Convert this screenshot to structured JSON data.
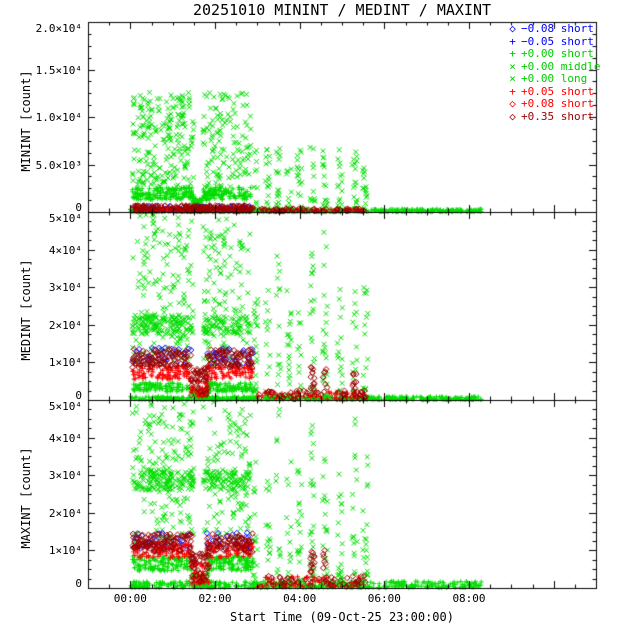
{
  "title": "20251010 MININT / MEDINT / MAXINT",
  "xlabel": "Start Time (09-Oct-25 23:00:00)",
  "legend": [
    {
      "marker": "◇",
      "color": "#0000ff",
      "label": "−0.08 short"
    },
    {
      "marker": "+",
      "color": "#0000ff",
      "label": "−0.05 short"
    },
    {
      "marker": "+",
      "color": "#00cc00",
      "label": "+0.00 short"
    },
    {
      "marker": "×",
      "color": "#00cc00",
      "label": "+0.00 middle"
    },
    {
      "marker": "×",
      "color": "#00cc00",
      "label": "+0.00 long"
    },
    {
      "marker": "+",
      "color": "#ff0000",
      "label": "+0.05 short"
    },
    {
      "marker": "◇",
      "color": "#ff0000",
      "label": "+0.08 short"
    },
    {
      "marker": "◇",
      "color": "#990000",
      "label": "+0.35 short"
    }
  ],
  "chart_data": {
    "type": "scatter",
    "title": "20251010 MININT / MEDINT / MAXINT",
    "xlabel": "Start Time (09-Oct-25 23:00:00)",
    "x_hours_range": [
      -1,
      11
    ],
    "x_ticks": [
      {
        "t": 0,
        "label": "00:00"
      },
      {
        "t": 2,
        "label": "02:00"
      },
      {
        "t": 4,
        "label": "04:00"
      },
      {
        "t": 6,
        "label": "06:00"
      },
      {
        "t": 8,
        "label": "08:00"
      }
    ],
    "panels": [
      {
        "name": "MININT",
        "ylabel": "MININT [count]",
        "ylim": [
          0,
          20000
        ],
        "yticks": [
          {
            "v": 0,
            "label": "0"
          },
          {
            "v": 5000,
            "label": "5.0×10³"
          },
          {
            "v": 10000,
            "label": "1.0×10⁴"
          },
          {
            "v": 15000,
            "label": "1.5×10⁴"
          },
          {
            "v": 20000,
            "label": "2.0×10⁴"
          }
        ],
        "clusters": [
          {
            "m": "x",
            "color": "#00dd00",
            "t0": 0.05,
            "t1": 2.85,
            "y0": 2600,
            "y1": 12600,
            "n": 380,
            "seed": 11,
            "gap": [
              1.5,
              1.72
            ]
          },
          {
            "m": "+",
            "color": "#00dd00",
            "t0": 0.05,
            "t1": 2.85,
            "y0": 1300,
            "y1": 2600,
            "n": 280,
            "seed": 12,
            "gap": [
              1.5,
              1.72
            ]
          },
          {
            "m": "+",
            "color": "#00dd00",
            "t0": 1.45,
            "t1": 1.8,
            "y0": 300,
            "y1": 1500,
            "n": 40,
            "seed": 13
          },
          {
            "m": "+",
            "color": "#00dd00",
            "t0": 0.0,
            "t1": 8.3,
            "y0": 30,
            "y1": 320,
            "n": 520,
            "seed": 14,
            "pow": 1.6
          },
          {
            "m": "x",
            "color": "#00dd00",
            "cols": [
              2.95,
              3.25,
              3.5,
              3.75,
              4.0,
              4.3,
              4.6,
              4.95,
              5.3,
              5.55
            ],
            "colWidth": 0.12,
            "y0": 300,
            "y1": 6800,
            "n": 150,
            "seed": 15,
            "pow": 1.5
          },
          {
            "m": "d",
            "color": "#0000ff",
            "t0": 0.05,
            "t1": 2.9,
            "y0": 100,
            "y1": 650,
            "n": 70,
            "seed": 16
          },
          {
            "m": "+",
            "color": "#ff0000",
            "t0": 0.05,
            "t1": 2.9,
            "y0": 60,
            "y1": 520,
            "n": 150,
            "seed": 17
          },
          {
            "m": "+",
            "color": "#ff0000",
            "t0": 3.0,
            "t1": 5.6,
            "y0": 40,
            "y1": 300,
            "n": 45,
            "seed": 18
          },
          {
            "m": "d",
            "color": "#990000",
            "t0": 0.05,
            "t1": 2.9,
            "y0": 90,
            "y1": 700,
            "n": 170,
            "seed": 19
          },
          {
            "m": "d",
            "color": "#990000",
            "t0": 3.0,
            "t1": 5.6,
            "y0": 50,
            "y1": 350,
            "n": 55,
            "seed": 20
          }
        ]
      },
      {
        "name": "MEDINT",
        "ylabel": "MEDINT [count]",
        "ylim": [
          0,
          50000
        ],
        "yticks": [
          {
            "v": 0,
            "label": "0"
          },
          {
            "v": 10000,
            "label": "1×10⁴"
          },
          {
            "v": 20000,
            "label": "2×10⁴"
          },
          {
            "v": 30000,
            "label": "3×10⁴"
          },
          {
            "v": 40000,
            "label": "4×10⁴"
          },
          {
            "v": 50000,
            "label": "5×10⁴"
          }
        ],
        "clusters": [
          {
            "m": "x",
            "color": "#00dd00",
            "t0": 0.05,
            "t1": 2.85,
            "y0": 9000,
            "y1": 49500,
            "n": 320,
            "seed": 21,
            "gap": [
              1.5,
              1.72
            ]
          },
          {
            "m": "x",
            "color": "#00dd00",
            "t0": 0.05,
            "t1": 2.85,
            "y0": 17500,
            "y1": 22500,
            "n": 220,
            "seed": 22,
            "gap": [
              1.5,
              1.72
            ]
          },
          {
            "m": "+",
            "color": "#00dd00",
            "t0": 0.05,
            "t1": 2.9,
            "y0": 2200,
            "y1": 4600,
            "n": 210,
            "seed": 23,
            "gap": [
              1.45,
              1.8
            ]
          },
          {
            "m": "+",
            "color": "#00dd00",
            "t0": 1.42,
            "t1": 1.85,
            "y0": 400,
            "y1": 2500,
            "n": 45,
            "seed": 24
          },
          {
            "m": "+",
            "color": "#00dd00",
            "t0": 0.0,
            "t1": 8.3,
            "y0": 80,
            "y1": 900,
            "n": 480,
            "seed": 25,
            "pow": 1.6
          },
          {
            "m": "x",
            "color": "#00dd00",
            "cols": [
              2.95,
              3.25,
              3.5,
              3.75,
              4.0,
              4.3,
              4.6,
              4.95,
              5.3,
              5.55
            ],
            "colWidth": 0.12,
            "y0": 700,
            "y1": 30000,
            "n": 170,
            "seed": 26,
            "pow": 1.7
          },
          {
            "m": "x",
            "color": "#00dd00",
            "cols": [
              3.5,
              4.3,
              4.6
            ],
            "colWidth": 0.08,
            "y0": 30000,
            "y1": 47500,
            "n": 14,
            "seed": 27
          },
          {
            "m": "d",
            "color": "#0000ff",
            "t0": 0.05,
            "t1": 2.9,
            "y0": 9000,
            "y1": 14000,
            "n": 75,
            "seed": 28,
            "gap": [
              1.45,
              1.8
            ]
          },
          {
            "m": "+",
            "color": "#ff0000",
            "t0": 0.05,
            "t1": 2.9,
            "y0": 5500,
            "y1": 9200,
            "n": 190,
            "seed": 29,
            "gap": [
              1.45,
              1.8
            ]
          },
          {
            "m": "+",
            "color": "#ff0000",
            "t0": 1.42,
            "t1": 1.85,
            "y0": 900,
            "y1": 5500,
            "n": 40,
            "seed": 30
          },
          {
            "m": "+",
            "color": "#ff0000",
            "t0": 3.0,
            "t1": 5.6,
            "y0": 150,
            "y1": 2200,
            "n": 50,
            "seed": 31
          },
          {
            "m": "d",
            "color": "#990000",
            "t0": 0.05,
            "t1": 2.9,
            "y0": 8500,
            "y1": 13500,
            "n": 210,
            "seed": 32,
            "gap": [
              1.45,
              1.8
            ]
          },
          {
            "m": "d",
            "color": "#990000",
            "t0": 1.42,
            "t1": 1.85,
            "y0": 1200,
            "y1": 8500,
            "n": 50,
            "seed": 33
          },
          {
            "m": "d",
            "color": "#990000",
            "t0": 3.0,
            "t1": 5.6,
            "y0": 200,
            "y1": 2600,
            "n": 60,
            "seed": 34
          },
          {
            "m": "d",
            "color": "#990000",
            "cols": [
              4.3,
              4.6,
              5.3
            ],
            "colWidth": 0.1,
            "y0": 3000,
            "y1": 9000,
            "n": 26,
            "seed": 35
          }
        ]
      },
      {
        "name": "MAXINT",
        "ylabel": "MAXINT [count]",
        "ylim": [
          0,
          50000
        ],
        "yticks": [
          {
            "v": 0,
            "label": "0"
          },
          {
            "v": 10000,
            "label": "1×10⁴"
          },
          {
            "v": 20000,
            "label": "2×10⁴"
          },
          {
            "v": 30000,
            "label": "3×10⁴"
          },
          {
            "v": 40000,
            "label": "4×10⁴"
          },
          {
            "v": 50000,
            "label": "5×10⁴"
          }
        ],
        "clusters": [
          {
            "m": "x",
            "color": "#00dd00",
            "t0": 0.05,
            "t1": 2.85,
            "y0": 12000,
            "y1": 49500,
            "n": 300,
            "seed": 41,
            "gap": [
              1.5,
              1.72
            ]
          },
          {
            "m": "x",
            "color": "#00dd00",
            "t0": 0.05,
            "t1": 2.85,
            "y0": 26000,
            "y1": 31500,
            "n": 230,
            "seed": 42,
            "gap": [
              1.5,
              1.72
            ]
          },
          {
            "m": "+",
            "color": "#00dd00",
            "t0": 0.05,
            "t1": 2.9,
            "y0": 4500,
            "y1": 8500,
            "n": 260,
            "seed": 43,
            "gap": [
              1.45,
              1.8
            ]
          },
          {
            "m": "+",
            "color": "#00dd00",
            "t0": 1.42,
            "t1": 1.85,
            "y0": 500,
            "y1": 4000,
            "n": 50,
            "seed": 44
          },
          {
            "m": "+",
            "color": "#00dd00",
            "t0": 0.0,
            "t1": 8.3,
            "y0": 150,
            "y1": 1800,
            "n": 430,
            "seed": 45,
            "pow": 1.7
          },
          {
            "m": "x",
            "color": "#00dd00",
            "cols": [
              2.95,
              3.25,
              3.5,
              3.75,
              4.0,
              4.3,
              4.6,
              4.95,
              5.3,
              5.55
            ],
            "colWidth": 0.12,
            "y0": 1000,
            "y1": 35000,
            "n": 180,
            "seed": 46,
            "pow": 1.6
          },
          {
            "m": "x",
            "color": "#00dd00",
            "cols": [
              3.5,
              4.3,
              5.3
            ],
            "colWidth": 0.08,
            "y0": 35000,
            "y1": 47500,
            "n": 12,
            "seed": 47
          },
          {
            "m": "d",
            "color": "#0000ff",
            "t0": 0.05,
            "t1": 2.9,
            "y0": 10000,
            "y1": 15000,
            "n": 70,
            "seed": 48,
            "gap": [
              1.45,
              1.8
            ]
          },
          {
            "m": "+",
            "color": "#ff0000",
            "t0": 0.05,
            "t1": 2.9,
            "y0": 8000,
            "y1": 12000,
            "n": 190,
            "seed": 49,
            "gap": [
              1.45,
              1.8
            ]
          },
          {
            "m": "+",
            "color": "#ff0000",
            "t0": 1.42,
            "t1": 1.85,
            "y0": 1000,
            "y1": 7000,
            "n": 40,
            "seed": 50
          },
          {
            "m": "+",
            "color": "#ff0000",
            "t0": 3.0,
            "t1": 5.6,
            "y0": 200,
            "y1": 3000,
            "n": 50,
            "seed": 51
          },
          {
            "m": "d",
            "color": "#990000",
            "t0": 0.05,
            "t1": 2.9,
            "y0": 9500,
            "y1": 14500,
            "n": 210,
            "seed": 52,
            "gap": [
              1.45,
              1.8
            ]
          },
          {
            "m": "d",
            "color": "#990000",
            "t0": 1.42,
            "t1": 1.85,
            "y0": 1500,
            "y1": 9500,
            "n": 50,
            "seed": 53
          },
          {
            "m": "d",
            "color": "#990000",
            "t0": 3.0,
            "t1": 5.6,
            "y0": 300,
            "y1": 3200,
            "n": 60,
            "seed": 54
          },
          {
            "m": "d",
            "color": "#990000",
            "cols": [
              4.3,
              4.6
            ],
            "colWidth": 0.1,
            "y0": 4000,
            "y1": 10000,
            "n": 20,
            "seed": 55
          }
        ]
      }
    ]
  }
}
